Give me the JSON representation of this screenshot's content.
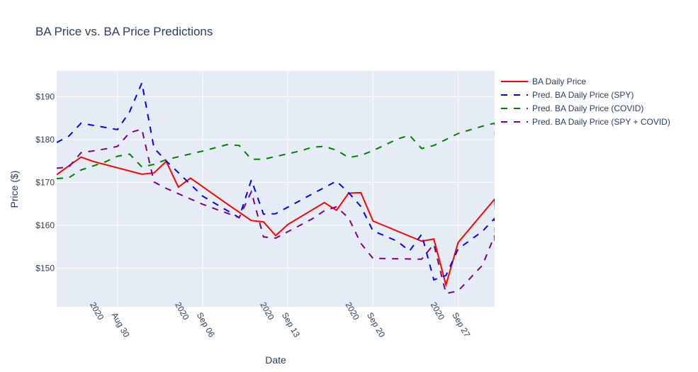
{
  "chart_data": {
    "type": "line",
    "title": "BA Price vs. BA Price Predictions",
    "xlabel": "Date",
    "ylabel": "Price ($)",
    "x_range": [
      "2020-08-25",
      "2020-09-30"
    ],
    "y_range": [
      141,
      196
    ],
    "y_ticks": [
      150,
      160,
      170,
      180,
      190
    ],
    "y_tick_labels": [
      "$150",
      "$160",
      "$170",
      "$180",
      "$190"
    ],
    "x_ticks": [
      "2020-08-30",
      "2020-09-06",
      "2020-09-13",
      "2020-09-20",
      "2020-09-27"
    ],
    "x_tick_labels": [
      [
        "Aug 30",
        "2020"
      ],
      [
        "Sep 06",
        "2020"
      ],
      [
        "Sep 13",
        "2020"
      ],
      [
        "Sep 20",
        "2020"
      ],
      [
        "Sep 27",
        "2020"
      ]
    ],
    "colors": {
      "plot_bg": "#e5ecf6",
      "grid": "#ffffff"
    },
    "legend_position": "top-right",
    "series": [
      {
        "name": "BA Daily Price",
        "color": "#ff0000",
        "dash": "solid",
        "points": [
          [
            "2020-08-25",
            171.8
          ],
          [
            "2020-08-27",
            175.9
          ],
          [
            "2020-08-28",
            174.9
          ],
          [
            "2020-09-01",
            171.9
          ],
          [
            "2020-09-02",
            172.2
          ],
          [
            "2020-09-03",
            174.9
          ],
          [
            "2020-09-04",
            168.9
          ],
          [
            "2020-09-05",
            171.0
          ],
          [
            "2020-09-08",
            165.0
          ],
          [
            "2020-09-10",
            161.1
          ],
          [
            "2020-09-11",
            160.8
          ],
          [
            "2020-09-12",
            157.6
          ],
          [
            "2020-09-13",
            160.2
          ],
          [
            "2020-09-15",
            163.6
          ],
          [
            "2020-09-16",
            165.3
          ],
          [
            "2020-09-17",
            163.5
          ],
          [
            "2020-09-18",
            167.5
          ],
          [
            "2020-09-19",
            167.6
          ],
          [
            "2020-09-20",
            161.0
          ],
          [
            "2020-09-24",
            156.3
          ],
          [
            "2020-09-25",
            156.8
          ],
          [
            "2020-09-26",
            146.1
          ],
          [
            "2020-09-27",
            156.0
          ],
          [
            "2020-09-30",
            166.1
          ],
          [
            "2020-09-30",
            163.5
          ],
          [
            "2020-09-30",
            165.3
          ]
        ]
      },
      {
        "name": "Pred. BA Daily Price (SPY)",
        "color": "#0000ff",
        "dash": "dash",
        "points": [
          [
            "2020-08-25",
            179.3
          ],
          [
            "2020-08-26",
            180.8
          ],
          [
            "2020-08-27",
            183.8
          ],
          [
            "2020-08-29",
            182.8
          ],
          [
            "2020-08-30",
            182.3
          ],
          [
            "2020-08-31",
            186.5
          ],
          [
            "2020-09-01",
            193.2
          ],
          [
            "2020-09-02",
            178.0
          ],
          [
            "2020-09-03",
            175.0
          ],
          [
            "2020-09-06",
            166.8
          ],
          [
            "2020-09-09",
            161.8
          ],
          [
            "2020-09-10",
            170.6
          ],
          [
            "2020-09-11",
            162.6
          ],
          [
            "2020-09-12",
            162.7
          ],
          [
            "2020-09-15",
            167.3
          ],
          [
            "2020-09-17",
            170.3
          ],
          [
            "2020-09-18",
            167.6
          ],
          [
            "2020-09-19",
            164.4
          ],
          [
            "2020-09-20",
            158.7
          ],
          [
            "2020-09-22",
            156.3
          ],
          [
            "2020-09-23",
            154.0
          ],
          [
            "2020-09-24",
            157.9
          ],
          [
            "2020-09-25",
            147.3
          ],
          [
            "2020-09-26",
            148.3
          ],
          [
            "2020-09-27",
            154.5
          ],
          [
            "2020-09-29",
            158.6
          ],
          [
            "2020-09-30",
            161.6
          ],
          [
            "2020-09-30",
            158.0
          ],
          [
            "2020-09-30",
            161.3
          ]
        ]
      },
      {
        "name": "Pred. BA Daily Price (COVID)",
        "color": "#008000",
        "dash": "dash",
        "points": [
          [
            "2020-08-25",
            170.9
          ],
          [
            "2020-08-26",
            171.1
          ],
          [
            "2020-08-27",
            172.9
          ],
          [
            "2020-08-29",
            174.8
          ],
          [
            "2020-08-30",
            176.1
          ],
          [
            "2020-08-31",
            176.6
          ],
          [
            "2020-09-01",
            173.6
          ],
          [
            "2020-09-02",
            174.2
          ],
          [
            "2020-09-03",
            175.3
          ],
          [
            "2020-09-06",
            177.3
          ],
          [
            "2020-09-08",
            178.8
          ],
          [
            "2020-09-09",
            178.6
          ],
          [
            "2020-09-10",
            175.4
          ],
          [
            "2020-09-11",
            175.4
          ],
          [
            "2020-09-14",
            177.3
          ],
          [
            "2020-09-15",
            178.2
          ],
          [
            "2020-09-16",
            178.4
          ],
          [
            "2020-09-17",
            177.5
          ],
          [
            "2020-09-18",
            175.8
          ],
          [
            "2020-09-19",
            176.3
          ],
          [
            "2020-09-20",
            177.4
          ],
          [
            "2020-09-22",
            180.1
          ],
          [
            "2020-09-23",
            181.0
          ],
          [
            "2020-09-24",
            177.9
          ],
          [
            "2020-09-25",
            178.6
          ],
          [
            "2020-09-26",
            180.0
          ],
          [
            "2020-09-27",
            181.4
          ],
          [
            "2020-09-29",
            183.1
          ],
          [
            "2020-09-30",
            183.8
          ],
          [
            "2020-09-30",
            180.5
          ]
        ]
      },
      {
        "name": "Pred. BA Daily Price (SPY + COVID)",
        "color": "#800080",
        "dash": "dash",
        "points": [
          [
            "2020-08-25",
            173.3
          ],
          [
            "2020-08-26",
            173.6
          ],
          [
            "2020-08-27",
            176.9
          ],
          [
            "2020-08-29",
            177.8
          ],
          [
            "2020-08-30",
            178.4
          ],
          [
            "2020-08-31",
            181.6
          ],
          [
            "2020-09-01",
            182.4
          ],
          [
            "2020-09-02",
            170.1
          ],
          [
            "2020-09-03",
            168.6
          ],
          [
            "2020-09-06",
            164.9
          ],
          [
            "2020-09-09",
            161.8
          ],
          [
            "2020-09-10",
            167.8
          ],
          [
            "2020-09-11",
            157.3
          ],
          [
            "2020-09-12",
            157.0
          ],
          [
            "2020-09-15",
            161.5
          ],
          [
            "2020-09-16",
            163.4
          ],
          [
            "2020-09-17",
            164.3
          ],
          [
            "2020-09-18",
            161.7
          ],
          [
            "2020-09-19",
            155.8
          ],
          [
            "2020-09-20",
            152.3
          ],
          [
            "2020-09-24",
            152.1
          ],
          [
            "2020-09-25",
            155.6
          ],
          [
            "2020-09-26",
            144.1
          ],
          [
            "2020-09-27",
            144.7
          ],
          [
            "2020-09-29",
            150.7
          ],
          [
            "2020-09-30",
            157.6
          ],
          [
            "2020-09-30",
            154.3
          ]
        ]
      }
    ]
  }
}
